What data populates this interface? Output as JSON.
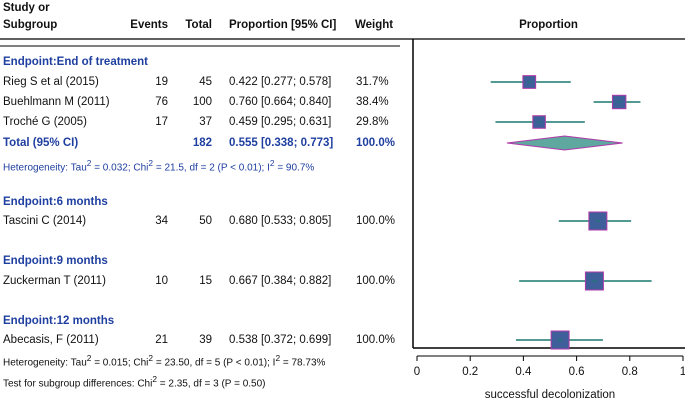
{
  "header": {
    "study_line1": "Study or",
    "study_line2": "Subgroup",
    "events": "Events",
    "total": "Total",
    "proportion_ci": "Proportion [95% CI]",
    "weight": "Weight",
    "plot_title": "Proportion"
  },
  "groups": [
    {
      "title": "Endpoint:End of treatment",
      "studies": [
        {
          "name": "Rieg S et al (2015)",
          "events": "19",
          "total": "45",
          "ci_text": "0.422 [0.277; 0.578]",
          "weight": "31.7%"
        },
        {
          "name": "Buehlmann M (2011)",
          "events": "76",
          "total": "100",
          "ci_text": "0.760 [0.664; 0.840]",
          "weight": "38.4%"
        },
        {
          "name": "Troché G (2005)",
          "events": "17",
          "total": "37",
          "ci_text": "0.459 [0.295; 0.631]",
          "weight": "29.8%"
        }
      ],
      "pooled": {
        "label": "Total (95% CI)",
        "total": "182",
        "ci_text": "0.555 [0.338; 0.773]",
        "weight": "100.0%"
      },
      "heterogeneity": {
        "prefix": "Heterogeneity: Tau",
        "tau2": "= 0.032; Chi",
        "chi2": "= 21.5, df = 2 (P < 0.01); I",
        "i2": "= 90.7%"
      }
    },
    {
      "title": "Endpoint:6 months",
      "studies": [
        {
          "name": "Tascini C (2014)",
          "events": "34",
          "total": "50",
          "ci_text": "0.680 [0.533; 0.805]",
          "weight": "100.0%"
        }
      ]
    },
    {
      "title": "Endpoint:9 months",
      "studies": [
        {
          "name": "Zuckerman T (2011)",
          "events": "10",
          "total": "15",
          "ci_text": "0.667 [0.384; 0.882]",
          "weight": "100.0%"
        }
      ]
    },
    {
      "title": "Endpoint:12 months",
      "studies": [
        {
          "name": "Abecasis, F (2011)",
          "events": "21",
          "total": "39",
          "ci_text": "0.538 [0.372; 0.699]",
          "weight": "100.0%"
        }
      ]
    }
  ],
  "overall_heterogeneity": {
    "prefix": "Heterogeneity: Tau",
    "tau2": "= 0.015; Chi",
    "chi2": "= 23.50, df = 5 (P < 0.01); I",
    "i2": "= 78.73%"
  },
  "subgroup_test": {
    "prefix": "Test for subgroup differences: Chi",
    "rest": "= 2.35, df = 3 (P = 0.50)"
  },
  "superscript_2": "2",
  "chart_data": {
    "type": "forest",
    "title": "Proportion",
    "xlabel": "successful decolonization",
    "xlim": [
      0,
      1
    ],
    "xticks": [
      "0",
      "0.2",
      "0.4",
      "0.6",
      "0.8",
      "1"
    ],
    "xtick_values": [
      0,
      0.2,
      0.4,
      0.6,
      0.8,
      1
    ],
    "studies": [
      {
        "name": "Rieg S et al (2015)",
        "estimate": 0.422,
        "lower": 0.277,
        "upper": 0.578,
        "weight": 31.7
      },
      {
        "name": "Buehlmann M (2011)",
        "estimate": 0.76,
        "lower": 0.664,
        "upper": 0.84,
        "weight": 38.4
      },
      {
        "name": "Troché G (2005)",
        "estimate": 0.459,
        "lower": 0.295,
        "upper": 0.631,
        "weight": 29.8
      },
      {
        "name": "Tascini C (2014)",
        "estimate": 0.68,
        "lower": 0.533,
        "upper": 0.805,
        "weight": 100.0
      },
      {
        "name": "Zuckerman T (2011)",
        "estimate": 0.667,
        "lower": 0.384,
        "upper": 0.882,
        "weight": 100.0
      },
      {
        "name": "Abecasis, F (2011)",
        "estimate": 0.538,
        "lower": 0.372,
        "upper": 0.699,
        "weight": 100.0
      }
    ],
    "pooled": [
      {
        "name": "Total (95% CI)",
        "estimate": 0.555,
        "lower": 0.338,
        "upper": 0.773
      }
    ],
    "colors": {
      "ci_line": "#1a7a6e",
      "box": "#3f5f9a",
      "box_border": "#b03aa8",
      "diamond_fill": "#5fa8a0",
      "diamond_border": "#b03aa8"
    }
  }
}
